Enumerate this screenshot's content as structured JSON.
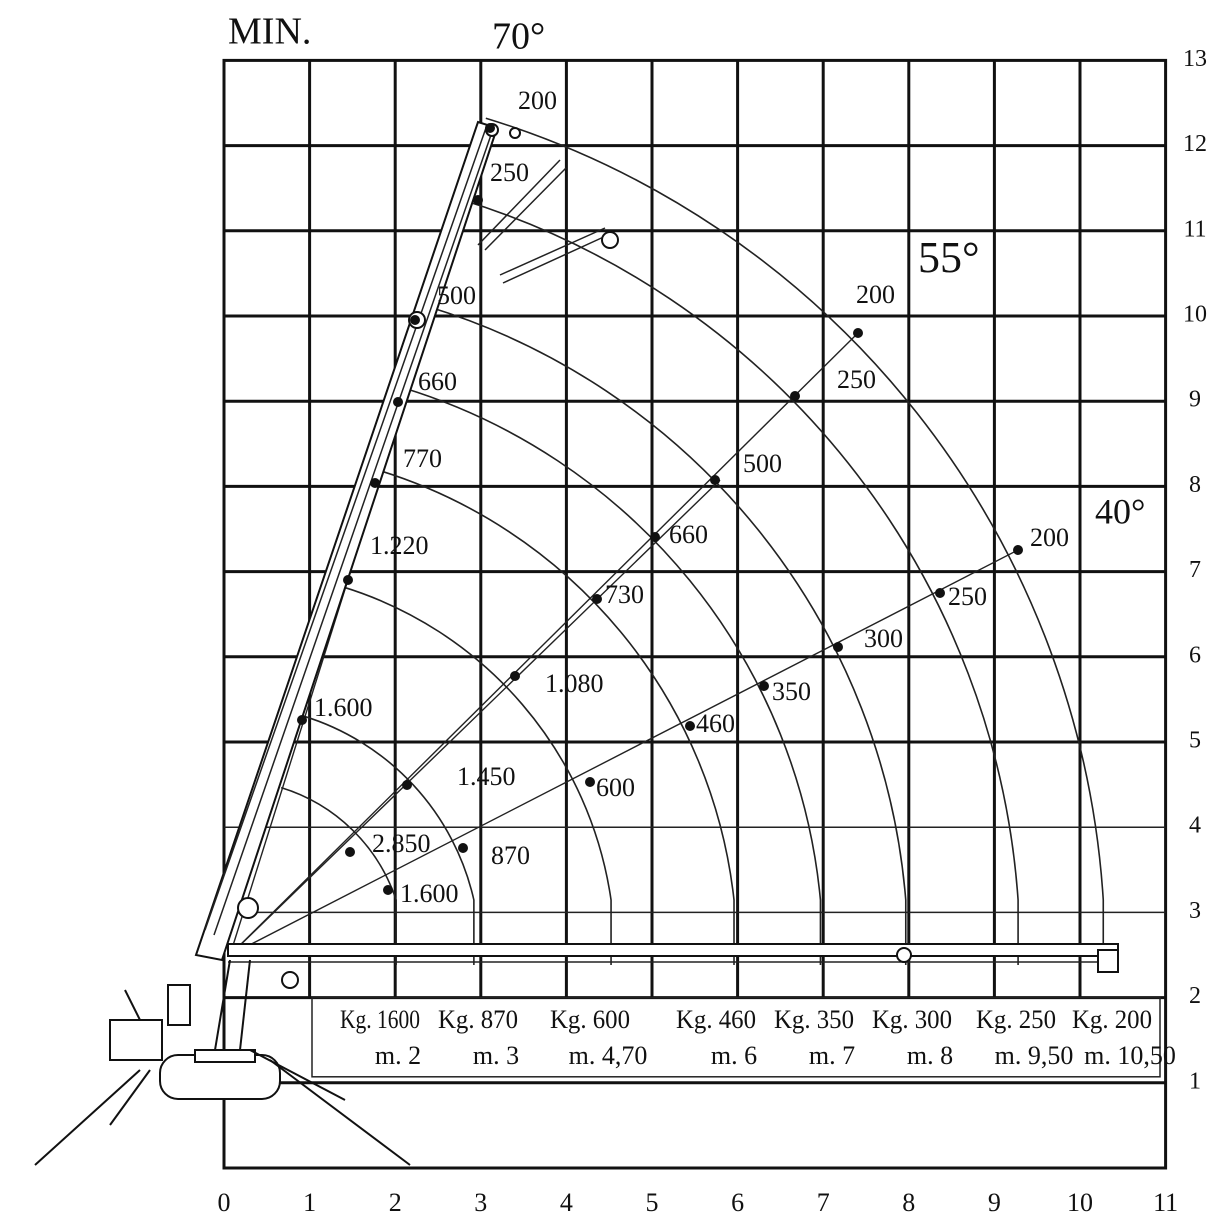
{
  "header": {
    "title": "MIN."
  },
  "angles": [
    "70°",
    "55°",
    "40°"
  ],
  "x_axis": [
    "0",
    "1",
    "2",
    "3",
    "4",
    "5",
    "6",
    "7",
    "8",
    "9",
    "10",
    "11"
  ],
  "y_axis": [
    "1",
    "2",
    "3",
    "4",
    "5",
    "6",
    "7",
    "8",
    "9",
    "10",
    "11",
    "12",
    "13"
  ],
  "boom_loads": [
    "200",
    "250",
    "500",
    "660",
    "770",
    "1.220",
    "1.600",
    "2.850",
    "1.600"
  ],
  "line_55_loads": [
    "200",
    "250",
    "500",
    "660",
    "730",
    "1.080",
    "1.450",
    "870"
  ],
  "line_40_loads": [
    "200",
    "250",
    "300",
    "350",
    "460",
    "600"
  ],
  "capacity_table": [
    {
      "kg": "Kg. 1600",
      "m": "m. 2"
    },
    {
      "kg": "Kg. 870",
      "m": "m. 3"
    },
    {
      "kg": "Kg. 600",
      "m": "m. 4,70"
    },
    {
      "kg": "Kg. 460",
      "m": "m. 6"
    },
    {
      "kg": "Kg. 350",
      "m": "m. 7"
    },
    {
      "kg": "Kg. 300",
      "m": "m. 8"
    },
    {
      "kg": "Kg. 250",
      "m": "m. 9,50"
    },
    {
      "kg": "Kg. 200",
      "m": "m. 10,50"
    }
  ]
}
